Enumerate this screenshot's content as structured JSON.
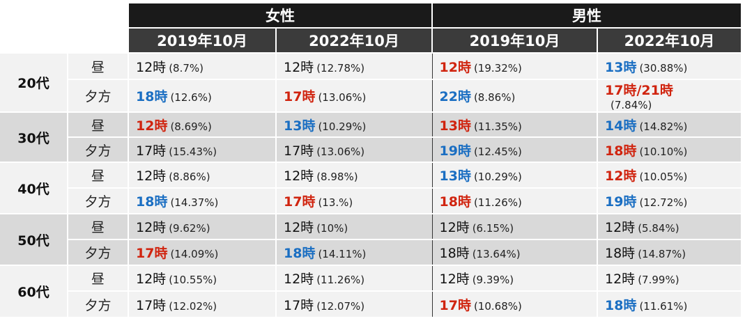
{
  "header": {
    "female": "女性",
    "male": "男性",
    "years": [
      "2019年10月",
      "2022年10月",
      "2019年10月",
      "2022年10月"
    ]
  },
  "groups": [
    {
      "age": "20代",
      "rows": [
        {
          "time": "昼",
          "cells": [
            {
              "hour": "12時",
              "pct": "(8.7%)",
              "color": "plain"
            },
            {
              "hour": "12時",
              "pct": "(12.78%)",
              "color": "plain"
            },
            {
              "hour": "12時",
              "pct": "(19.32%)",
              "color": "red"
            },
            {
              "hour": "13時",
              "pct": "(30.88%)",
              "color": "blue"
            }
          ]
        },
        {
          "time": "夕方",
          "cells": [
            {
              "hour": "18時",
              "pct": "(12.6%)",
              "color": "blue"
            },
            {
              "hour": "17時",
              "pct": "(13.06%)",
              "color": "red"
            },
            {
              "hour": "22時",
              "pct": "(8.86%)",
              "color": "blue"
            },
            {
              "hour": "17時/21時",
              "pct": "(7.84%)",
              "color": "red",
              "wrap": true
            }
          ]
        }
      ]
    },
    {
      "age": "30代",
      "rows": [
        {
          "time": "昼",
          "cells": [
            {
              "hour": "12時",
              "pct": "(8.69%)",
              "color": "red"
            },
            {
              "hour": "13時",
              "pct": "(10.29%)",
              "color": "blue"
            },
            {
              "hour": "13時",
              "pct": "(11.35%)",
              "color": "red"
            },
            {
              "hour": "14時",
              "pct": "(14.82%)",
              "color": "blue"
            }
          ]
        },
        {
          "time": "夕方",
          "cells": [
            {
              "hour": "17時",
              "pct": "(15.43%)",
              "color": "plain"
            },
            {
              "hour": "17時",
              "pct": "(13.06%)",
              "color": "plain"
            },
            {
              "hour": "19時",
              "pct": "(12.45%)",
              "color": "blue"
            },
            {
              "hour": "18時",
              "pct": "(10.10%)",
              "color": "red"
            }
          ]
        }
      ]
    },
    {
      "age": "40代",
      "rows": [
        {
          "time": "昼",
          "cells": [
            {
              "hour": "12時",
              "pct": "(8.86%)",
              "color": "plain"
            },
            {
              "hour": "12時",
              "pct": "(8.98%)",
              "color": "plain"
            },
            {
              "hour": "13時",
              "pct": "(10.29%)",
              "color": "blue"
            },
            {
              "hour": "12時",
              "pct": "(10.05%)",
              "color": "red"
            }
          ]
        },
        {
          "time": "夕方",
          "cells": [
            {
              "hour": "18時",
              "pct": "(14.37%)",
              "color": "blue"
            },
            {
              "hour": "17時",
              "pct": "(13.%)",
              "color": "red"
            },
            {
              "hour": "18時",
              "pct": "(11.26%)",
              "color": "red"
            },
            {
              "hour": "19時",
              "pct": "(12.72%)",
              "color": "blue"
            }
          ]
        }
      ]
    },
    {
      "age": "50代",
      "rows": [
        {
          "time": "昼",
          "cells": [
            {
              "hour": "12時",
              "pct": "(9.62%)",
              "color": "plain"
            },
            {
              "hour": "12時",
              "pct": "(10%)",
              "color": "plain"
            },
            {
              "hour": "12時",
              "pct": "(6.15%)",
              "color": "plain"
            },
            {
              "hour": "12時",
              "pct": "(5.84%)",
              "color": "plain"
            }
          ]
        },
        {
          "time": "夕方",
          "cells": [
            {
              "hour": "17時",
              "pct": "(14.09%)",
              "color": "red"
            },
            {
              "hour": "18時",
              "pct": "(14.11%)",
              "color": "blue"
            },
            {
              "hour": "18時",
              "pct": "(13.64%)",
              "color": "plain"
            },
            {
              "hour": "18時",
              "pct": "(14.87%)",
              "color": "plain"
            }
          ]
        }
      ]
    },
    {
      "age": "60代",
      "rows": [
        {
          "time": "昼",
          "cells": [
            {
              "hour": "12時",
              "pct": "(10.55%)",
              "color": "plain"
            },
            {
              "hour": "12時",
              "pct": "(11.26%)",
              "color": "plain"
            },
            {
              "hour": "12時",
              "pct": "(9.39%)",
              "color": "plain"
            },
            {
              "hour": "12時",
              "pct": "(7.99%)",
              "color": "plain"
            }
          ]
        },
        {
          "time": "夕方",
          "cells": [
            {
              "hour": "17時",
              "pct": "(12.02%)",
              "color": "plain"
            },
            {
              "hour": "17時",
              "pct": "(12.07%)",
              "color": "plain"
            },
            {
              "hour": "17時",
              "pct": "(10.68%)",
              "color": "red"
            },
            {
              "hour": "18時",
              "pct": "(11.61%)",
              "color": "blue"
            }
          ]
        }
      ]
    }
  ],
  "colors": {
    "red": "#d0240f",
    "blue": "#1a6ec2",
    "header_dark": "#1a1a1a",
    "header_mid": "#3b3b3b",
    "row_light": "#f2f2f2",
    "row_dark": "#d9d9d9"
  }
}
